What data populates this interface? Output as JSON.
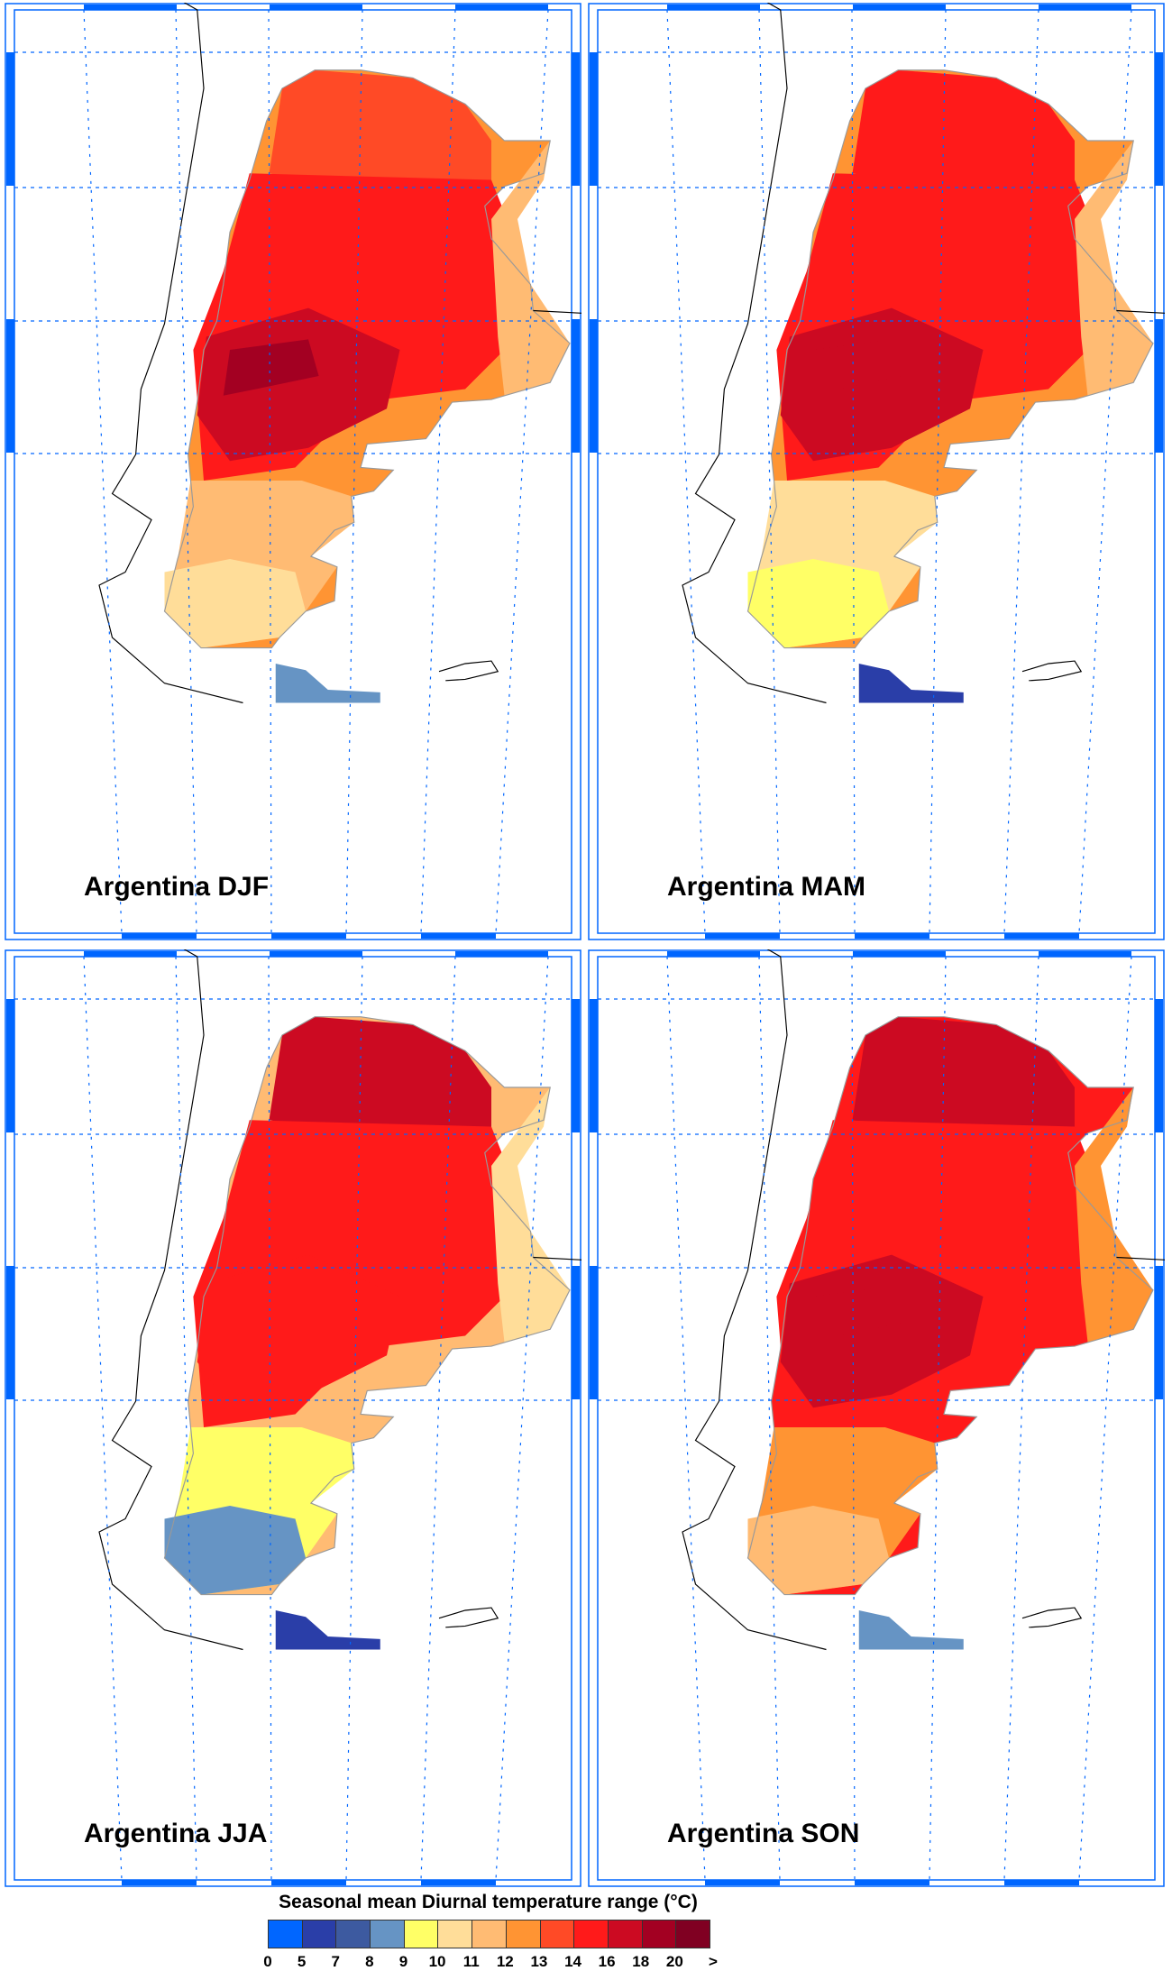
{
  "panels": [
    {
      "title": "Argentina DJF",
      "season": "DJF",
      "regions": {
        "full": 7,
        "north": 8,
        "center": 9,
        "core": 10,
        "deep": 11,
        "east": 6,
        "south": 6,
        "far_south": 5,
        "tdf": 3
      }
    },
    {
      "title": "Argentina MAM",
      "season": "MAM",
      "regions": {
        "full": 7,
        "north": 9,
        "center": 9,
        "core": 10,
        "deep": 10,
        "east": 6,
        "south": 5,
        "far_south": 4,
        "tdf": 1
      }
    },
    {
      "title": "Argentina JJA",
      "season": "JJA",
      "regions": {
        "full": 6,
        "north": 10,
        "center": 9,
        "core": 9,
        "deep": 9,
        "east": 5,
        "south": 4,
        "far_south": 3,
        "tdf": 1
      }
    },
    {
      "title": "Argentina SON",
      "season": "SON",
      "regions": {
        "full": 9,
        "north": 10,
        "center": 9,
        "core": 10,
        "deep": 10,
        "east": 7,
        "south": 7,
        "far_south": 6,
        "tdf": 3
      }
    }
  ],
  "chart_data": {
    "type": "heatmap",
    "title": "Seasonal mean Diurnal temperature range (°C)",
    "colorbar_labels": [
      "0",
      "5",
      "7",
      "8",
      "9",
      "10",
      "11",
      "12",
      "13",
      "14",
      "16",
      "18",
      "20",
      ">"
    ],
    "colors": [
      "#0066ff",
      "#2a3ea8",
      "#3d5aa0",
      "#6694c4",
      "#ffff66",
      "#ffdd99",
      "#ffbb73",
      "#ff9433",
      "#ff4a26",
      "#ff1a1a",
      "#cc0a22",
      "#a30022",
      "#800022"
    ],
    "panels": [
      "DJF",
      "MAM",
      "JJA",
      "SON"
    ]
  }
}
